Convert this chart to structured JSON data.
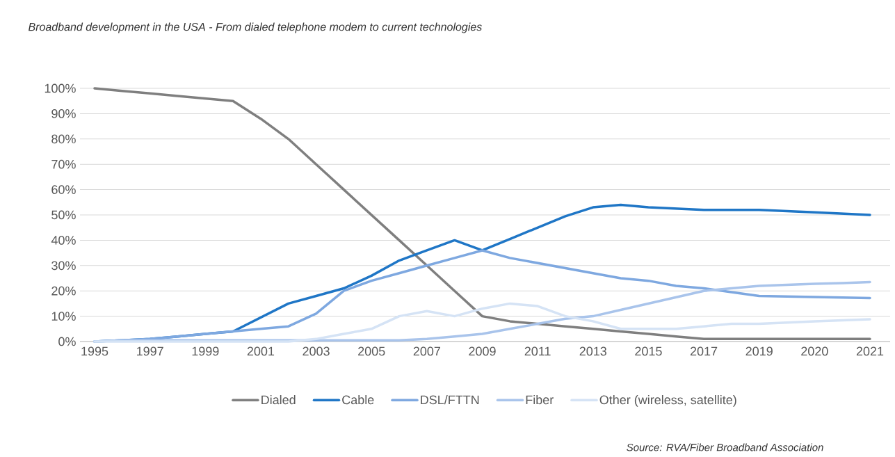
{
  "chart_data": {
    "type": "line",
    "title": "Broadband development in the USA - From dialed telephone modem to current technologies",
    "categories": [
      "1995",
      null,
      "1997",
      null,
      "1999",
      null,
      "2001",
      null,
      "2003",
      null,
      "2005",
      null,
      "2007",
      null,
      "2009",
      null,
      "2011",
      null,
      "2013",
      null,
      "2015",
      null,
      "2017",
      null,
      "2019",
      null,
      "2020",
      null,
      "2021"
    ],
    "series": [
      {
        "name": "Dialed",
        "color": "#7f7f7f",
        "values": [
          100,
          99,
          98,
          97,
          96,
          95,
          88,
          80,
          70,
          60,
          50,
          40,
          30,
          20,
          10,
          8,
          7,
          6,
          5,
          4,
          3,
          2,
          1,
          1,
          1,
          1,
          1,
          1,
          1
        ]
      },
      {
        "name": "Cable",
        "color": "#1f76c6",
        "values": [
          0,
          0.5,
          1,
          2,
          3,
          4,
          9.5,
          15,
          18,
          21,
          26,
          32,
          36,
          40,
          36,
          40.5,
          45,
          49.5,
          53,
          54,
          53,
          52.5,
          52,
          52,
          52,
          51.5,
          51,
          50.5,
          50
        ]
      },
      {
        "name": "DSL/FTTN",
        "color": "#7ea8e0",
        "values": [
          0,
          0.5,
          1,
          2,
          3,
          4,
          5,
          6,
          11,
          20,
          24,
          27,
          30,
          33,
          36,
          33,
          31,
          29,
          27,
          25,
          24,
          22,
          21,
          19.5,
          18,
          17.8,
          17.6,
          17.4,
          17.2
        ]
      },
      {
        "name": "Fiber",
        "color": "#a9c4eb",
        "values": [
          0,
          0.5,
          0.5,
          0.5,
          0.5,
          0.5,
          0.5,
          0.5,
          0.5,
          0.5,
          0.5,
          0.5,
          1,
          2,
          3,
          5,
          7,
          9,
          10,
          12.5,
          15,
          17.5,
          20,
          21,
          22,
          22.4,
          22.8,
          23.1,
          23.5
        ]
      },
      {
        "name": "Other (wireless, satellite)",
        "color": "#d5e3f5",
        "values": [
          0,
          0,
          0,
          0,
          0,
          0,
          0,
          0,
          1,
          3,
          5,
          10,
          12,
          10,
          13,
          15,
          14,
          10,
          8,
          5,
          5,
          5,
          6,
          7,
          7,
          7.5,
          8,
          8.4,
          8.8
        ]
      }
    ],
    "ylim": [
      0,
      100
    ],
    "yticks": [
      {
        "value": 0,
        "label": "0%"
      },
      {
        "value": 10,
        "label": "10%"
      },
      {
        "value": 20,
        "label": "20%"
      },
      {
        "value": 30,
        "label": "30%"
      },
      {
        "value": 40,
        "label": "40%"
      },
      {
        "value": 50,
        "label": "50%"
      },
      {
        "value": 60,
        "label": "60%"
      },
      {
        "value": 70,
        "label": "70%"
      },
      {
        "value": 80,
        "label": "80%"
      },
      {
        "value": 90,
        "label": "90%"
      },
      {
        "value": 100,
        "label": "100%"
      }
    ],
    "grid": "y",
    "legend": "bottom",
    "marker": "none",
    "line_style": "solid",
    "annotations": [
      "Source: RVA/Fiber Broadband Association"
    ]
  }
}
